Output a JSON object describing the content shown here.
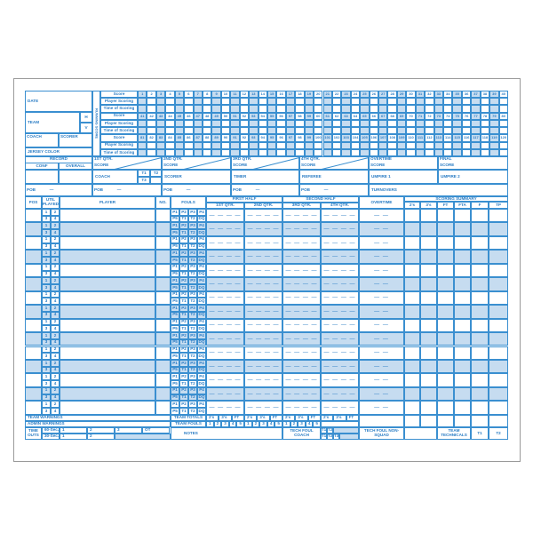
{
  "colors": {
    "line": "#3a8fd0",
    "shade": "#c6dcf0"
  },
  "team_info": {
    "date": "DATE",
    "team": "TEAM",
    "home": "H",
    "visitor": "V",
    "coach": "COACH",
    "scorer": "SCORER",
    "jersey_color": "JERSEY COLOR"
  },
  "running_score": {
    "vertical_label": "RUNNING SCORE",
    "row_labels": [
      "Score",
      "Player Scoring",
      "Time of Scoring"
    ],
    "bands": [
      {
        "first": 1,
        "last": 40
      },
      {
        "first": 41,
        "last": 80
      },
      {
        "first": 81,
        "last": 120
      }
    ]
  },
  "record": {
    "title": "RECORD",
    "conf": "CONF",
    "overall": "OVERALL"
  },
  "quarters": [
    {
      "label": "1ST QTR.",
      "sub": "SCORE"
    },
    {
      "label": "2ND QTR.",
      "sub": "SCORE"
    },
    {
      "label": "3RD QTR.",
      "sub": "SCORE"
    },
    {
      "label": "4TH QTR.",
      "sub": "SCORE"
    },
    {
      "label": "OVERTIME",
      "sub": "SCORE"
    },
    {
      "label": "FINAL",
      "sub": "SCORE"
    }
  ],
  "officials": {
    "coach": "COACH",
    "t1": "T1",
    "t2": "T2",
    "t3": "T3",
    "scorer": "SCORER",
    "timer": "TIMER",
    "referee": "REFEREE",
    "umpire1": "UMPIRE 1",
    "umpire2": "UMPIRE 2"
  },
  "pob": {
    "label": "POB",
    "dash": "—",
    "turnovers": "TURNOVERS"
  },
  "table": {
    "pos": "POS",
    "util": "UTIL PLAYED",
    "player": "PLAYER",
    "no": "NO.",
    "fouls": "FOULS",
    "first_half": "FIRST HALF",
    "second_half": "SECOND HALF",
    "q1": "1ST QTR.",
    "q2": "2ND QTR.",
    "q3": "3RD QTR.",
    "q4": "4TH QTR.",
    "overtime": "OVERTIME",
    "scoring_summary": "SCORING SUMMARY",
    "summary_cols": [
      "2's",
      "3's",
      "FT",
      "FTA",
      "F",
      "TP"
    ],
    "util_marks": [
      "1",
      "2",
      "3",
      "4"
    ],
    "foul_marks": [
      "P1",
      "P2",
      "P3",
      "P4",
      "P5",
      "T1",
      "T2",
      "DQ"
    ],
    "qtr_dashes": "— — — —",
    "ot_dashes": "— —",
    "player_count": 15
  },
  "footer": {
    "team_warnings": "TEAM WARNINGS",
    "admin_warnings": "ADMIN WARNINGS",
    "time_outs": "TIME OUTS",
    "sixty": "60-Sec.",
    "thirty": "30-Sec.",
    "to_marks": [
      "1",
      "2",
      "3",
      "OT"
    ],
    "team_totals": "TEAM TOTALS",
    "team_fouls": "TEAM FOULS",
    "totals_cols": [
      "2's",
      "3's",
      "FT"
    ],
    "foul_nums": [
      "1",
      "2",
      "3",
      "4",
      "5"
    ],
    "notes": "NOTES",
    "tech_coach": "TECH FOUL COACH",
    "tech_marks": [
      "T1",
      "T2",
      "T1",
      "T2",
      "T3"
    ],
    "tech_nonsquad": "TECH FOUL NON-SQUAD",
    "team_technicals": "TEAM TECHNICALS",
    "tt1": "T1",
    "tt2": "T2"
  }
}
